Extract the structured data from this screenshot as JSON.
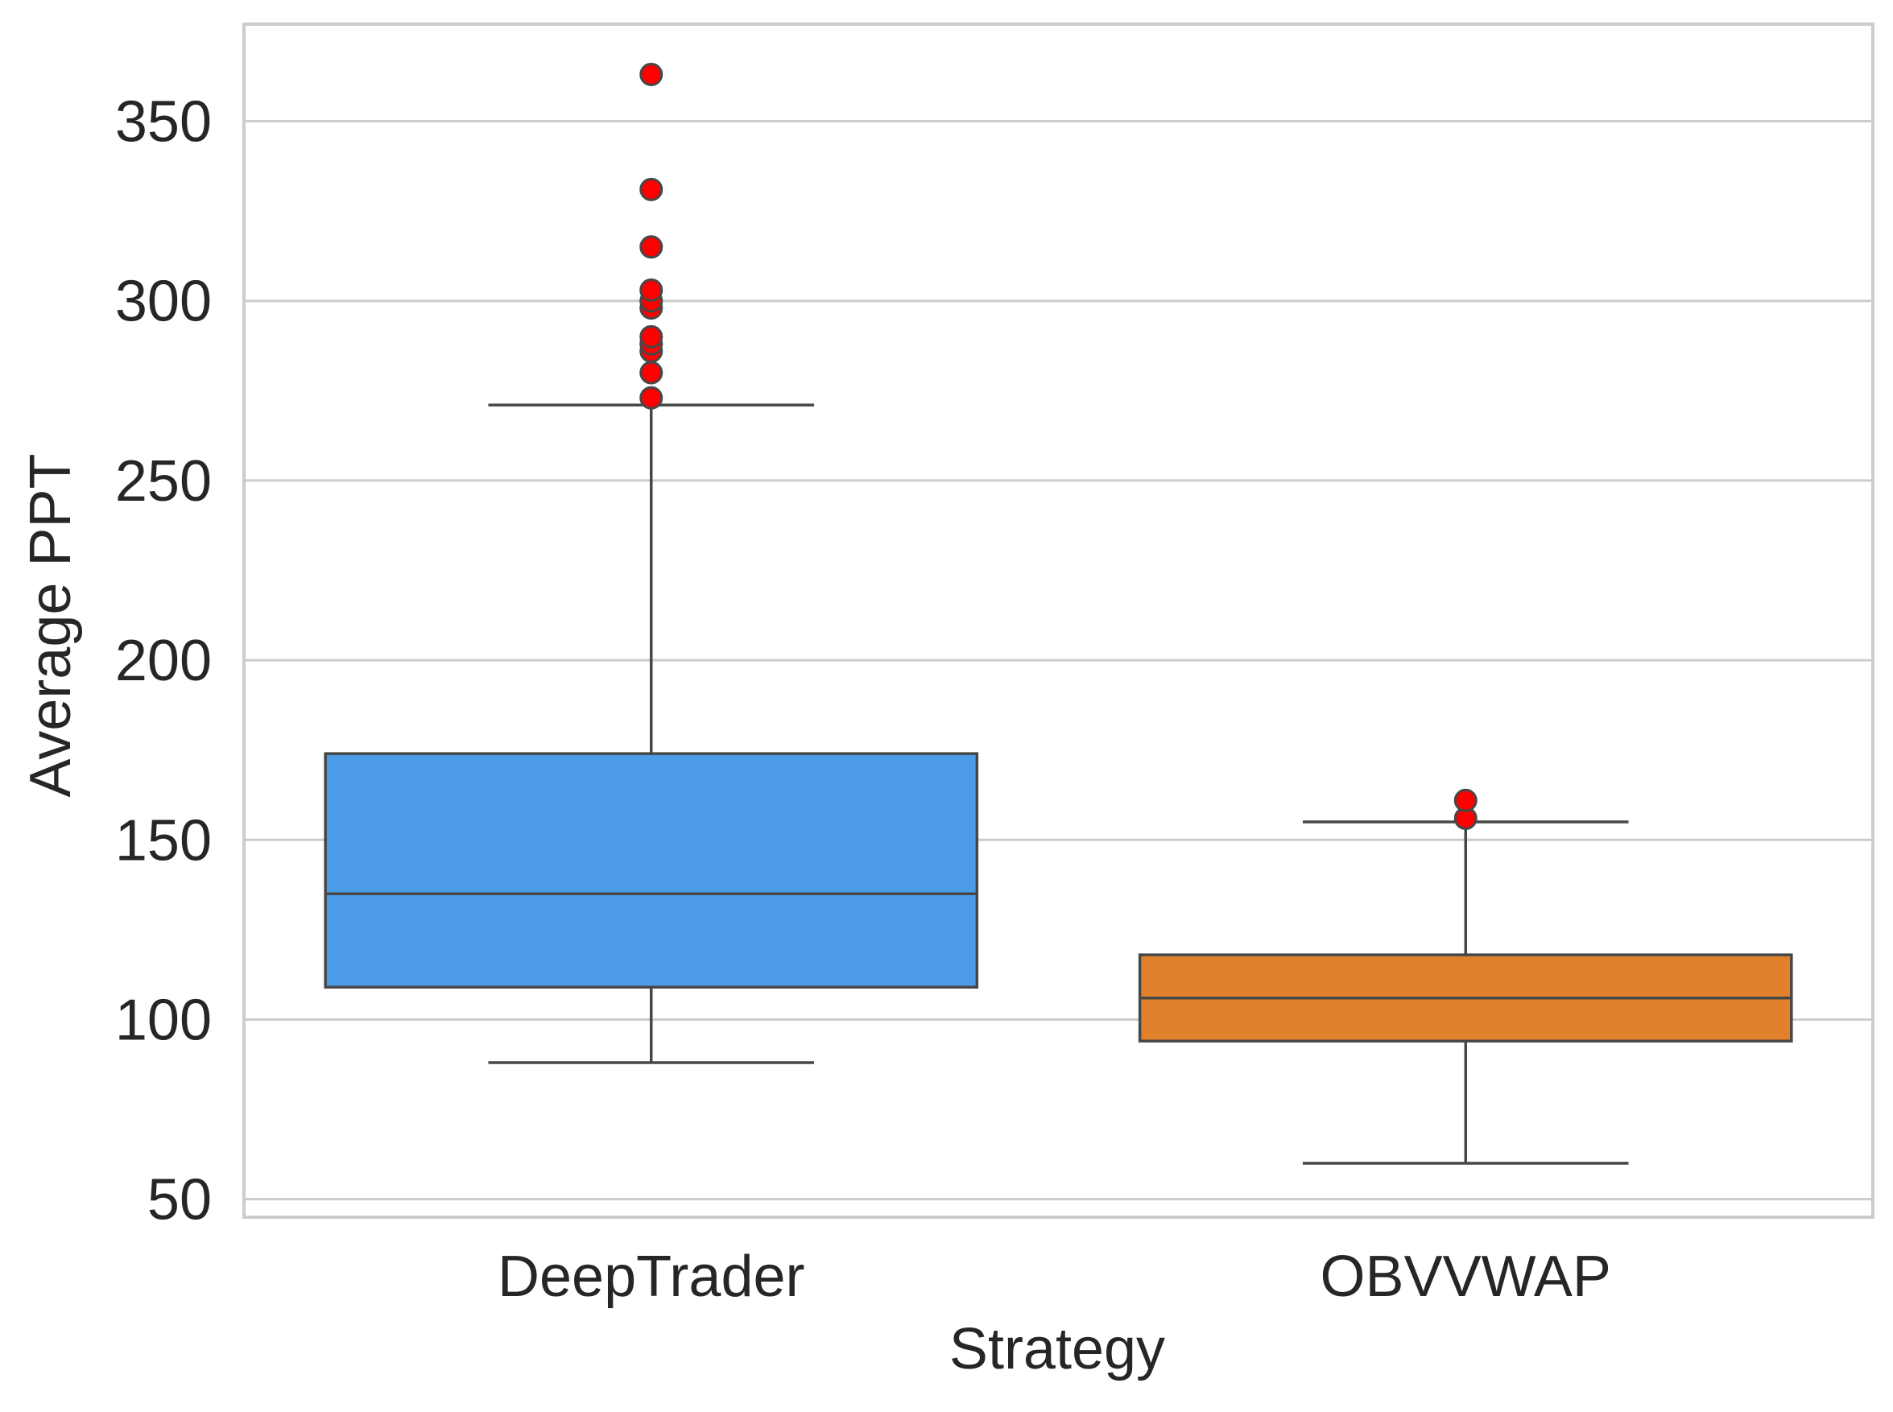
{
  "chart_data": {
    "type": "box",
    "title": "",
    "xlabel": "Strategy",
    "ylabel": "Average PPT",
    "categories": [
      "DeepTrader",
      "OBVVWAP"
    ],
    "ylim": [
      45,
      377
    ],
    "yticks": [
      50,
      100,
      150,
      200,
      250,
      300,
      350
    ],
    "grid": "horizontal",
    "legend": "none",
    "boxes": [
      {
        "category": "DeepTrader",
        "whisker_low": 88,
        "q1": 109,
        "median": 135,
        "q3": 174,
        "whisker_high": 271,
        "outliers": [
          273,
          280,
          286,
          288,
          290,
          298,
          300,
          303,
          315,
          331,
          363
        ],
        "color": "#4c9be6"
      },
      {
        "category": "OBVVWAP",
        "whisker_low": 60,
        "q1": 94,
        "median": 106,
        "q3": 118,
        "whisker_high": 155,
        "outliers": [
          156,
          161
        ],
        "color": "#e1812c"
      }
    ],
    "outlier_color": "#ff0000"
  }
}
